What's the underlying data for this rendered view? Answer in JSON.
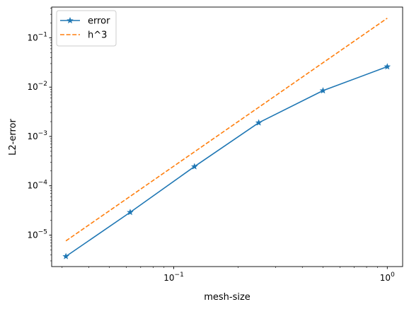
{
  "chart_data": {
    "type": "line",
    "title": "",
    "xlabel": "mesh-size",
    "ylabel": "L2-error",
    "xscale": "log",
    "yscale": "log",
    "xlim": [
      0.0268,
      1.18
    ],
    "ylim": [
      2.3e-06,
      0.42
    ],
    "grid": false,
    "legend_position": "top-left",
    "x_ticks": [
      {
        "value": 0.1,
        "base": "10",
        "exp": "−1"
      },
      {
        "value": 1,
        "base": "10",
        "exp": "0"
      }
    ],
    "y_ticks": [
      {
        "value": 1e-05,
        "base": "10",
        "exp": "−5"
      },
      {
        "value": 0.0001,
        "base": "10",
        "exp": "−4"
      },
      {
        "value": 0.001,
        "base": "10",
        "exp": "−3"
      },
      {
        "value": 0.01,
        "base": "10",
        "exp": "−2"
      },
      {
        "value": 0.1,
        "base": "10",
        "exp": "−1"
      }
    ],
    "series": [
      {
        "name": "error",
        "color": "#1f77b4",
        "line_style": "solid",
        "marker": "star",
        "x": [
          0.03125,
          0.0625,
          0.125,
          0.25,
          0.5,
          1.0
        ],
        "y": [
          3.7e-06,
          2.9e-05,
          0.000245,
          0.0019,
          0.0085,
          0.026
        ]
      },
      {
        "name": "h^3",
        "color": "#ff7f0e",
        "line_style": "dashed",
        "marker": "none",
        "x": [
          0.03125,
          0.0625,
          0.125,
          0.25,
          0.5,
          1.0
        ],
        "y": [
          7.63e-06,
          6.1e-05,
          0.000488,
          0.0039,
          0.03125,
          0.25
        ]
      }
    ]
  }
}
